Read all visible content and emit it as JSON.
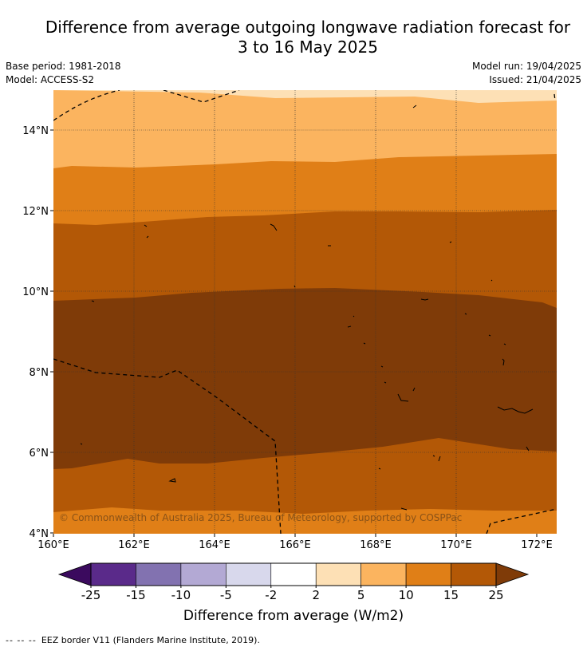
{
  "title_line1": "Difference from average outgoing longwave radiation forecast for",
  "title_line2": "3 to 16 May 2025",
  "base_period": "Base period: 1981-2018",
  "model": "Model: ACCESS-S2",
  "model_run": "Model run: 19/04/2025",
  "issued": "Issued: 21/04/2025",
  "copyright": "© Commonwealth of Australia 2025, Bureau of Meteorology, supported by COSPPac",
  "lat_labels": [
    "14°N",
    "12°N",
    "10°N",
    "8°N",
    "6°N",
    "4°N"
  ],
  "lon_labels": [
    "160°E",
    "162°E",
    "164°E",
    "166°E",
    "168°E",
    "170°E",
    "172°E"
  ],
  "colorbar": {
    "label": "Difference from average (W/m2)",
    "ticks": [
      "-25",
      "-15",
      "-10",
      "-5",
      "-2",
      "2",
      "5",
      "10",
      "15",
      "25"
    ],
    "colors": [
      "#5a2a8a",
      "#8272b0",
      "#b3a9d4",
      "#d8d8ec",
      "#ffffff",
      "#fde0b5",
      "#fbb45f",
      "#e07f17",
      "#b35806",
      "#7f3b08"
    ],
    "under_color": "#3b0a5e",
    "over_color": "#7f3b08"
  },
  "footer_dash": "-- -- --",
  "footer_text": "EEZ border V11 (Flanders Marine Institute, 2019)."
}
